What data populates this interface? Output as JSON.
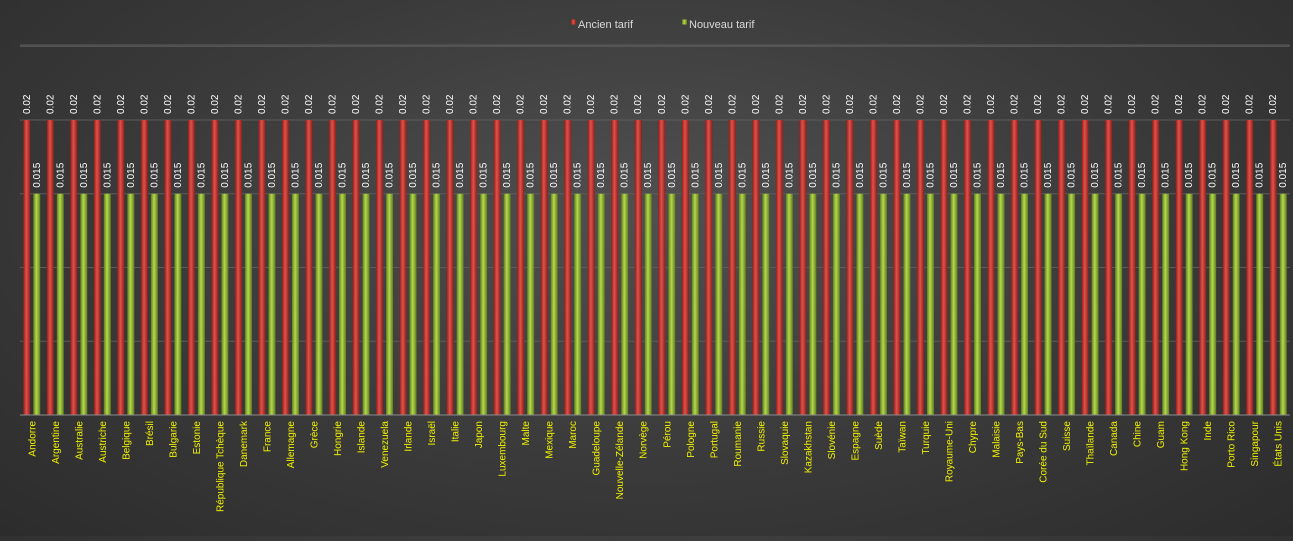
{
  "chart_data": {
    "type": "bar",
    "title": "",
    "xlabel": "",
    "ylabel": "",
    "ylim": [
      0,
      0.02
    ],
    "grid": true,
    "legend_position": "top-center",
    "categories": [
      "Andorre",
      "Argentine",
      "Australie",
      "Austriche",
      "Belgique",
      "Brésil",
      "Bulgarie",
      "Estonie",
      "République Tchèque",
      "Danemark",
      "France",
      "Allemagne",
      "Grèce",
      "Hongrie",
      "Islande",
      "Venezuela",
      "Irlande",
      "Israël",
      "Italie",
      "Japon",
      "Luxembourg",
      "Malte",
      "Mexique",
      "Maroc",
      "Guadeloupe",
      "Nouvelle-Zélande",
      "Norvège",
      "Pérou",
      "Pologne",
      "Portugal",
      "Roumanie",
      "Russie",
      "Slovaquie",
      "Kazakhstan",
      "Slovénie",
      "Espagne",
      "Suède",
      "Taïwan",
      "Turquie",
      "Royaume-Uni",
      "Chypre",
      "Malaisie",
      "Pays-Bas",
      "Corée du Sud",
      "Suisse",
      "Thaïlande",
      "Canada",
      "Chine",
      "Guam",
      "Hong Kong",
      "Inde",
      "Porto Rico",
      "Singapour",
      "États Unis"
    ],
    "series": [
      {
        "name": "Ancien tarif",
        "color": "#c0302a",
        "values": [
          0.02,
          0.02,
          0.02,
          0.02,
          0.02,
          0.02,
          0.02,
          0.02,
          0.02,
          0.02,
          0.02,
          0.02,
          0.02,
          0.02,
          0.02,
          0.02,
          0.02,
          0.02,
          0.02,
          0.02,
          0.02,
          0.02,
          0.02,
          0.02,
          0.02,
          0.02,
          0.02,
          0.02,
          0.02,
          0.02,
          0.02,
          0.02,
          0.02,
          0.02,
          0.02,
          0.02,
          0.02,
          0.02,
          0.02,
          0.02,
          0.02,
          0.02,
          0.02,
          0.02,
          0.02,
          0.02,
          0.02,
          0.02,
          0.02,
          0.02,
          0.02,
          0.02,
          0.02,
          0.02
        ]
      },
      {
        "name": "Nouveau tarif",
        "color": "#8fb52e",
        "values": [
          0.015,
          0.015,
          0.015,
          0.015,
          0.015,
          0.015,
          0.015,
          0.015,
          0.015,
          0.015,
          0.015,
          0.015,
          0.015,
          0.015,
          0.015,
          0.015,
          0.015,
          0.015,
          0.015,
          0.015,
          0.015,
          0.015,
          0.015,
          0.015,
          0.015,
          0.015,
          0.015,
          0.015,
          0.015,
          0.015,
          0.015,
          0.015,
          0.015,
          0.015,
          0.015,
          0.015,
          0.015,
          0.015,
          0.015,
          0.015,
          0.015,
          0.015,
          0.015,
          0.015,
          0.015,
          0.015,
          0.015,
          0.015,
          0.015,
          0.015,
          0.015,
          0.015,
          0.015,
          0.015
        ]
      }
    ],
    "value_labels": {
      "Ancien tarif": "0.02",
      "Nouveau tarif": "0.015"
    },
    "category_label_color": "#f2f200"
  }
}
